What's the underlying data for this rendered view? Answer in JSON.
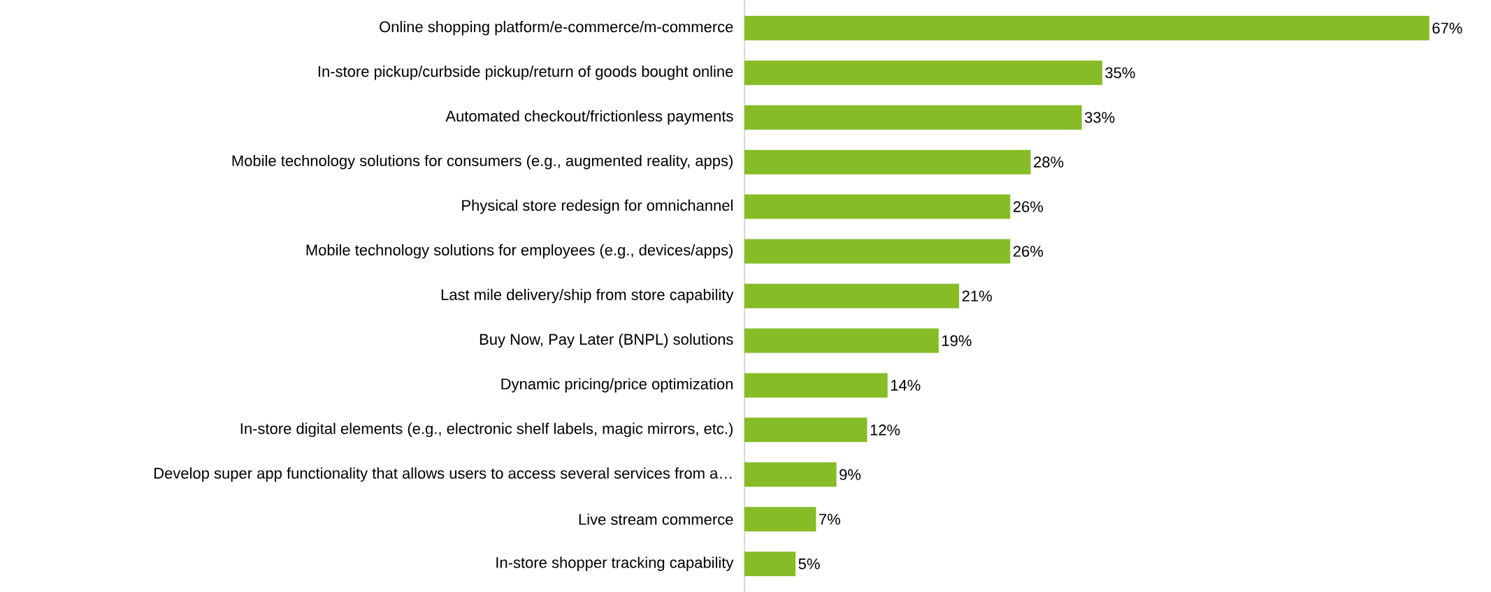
{
  "chart_data": {
    "type": "bar",
    "orientation": "horizontal",
    "color": "#86bc25",
    "categories": [
      "Online shopping platform/e-commerce/m-commerce",
      "In-store pickup/curbside pickup/return of goods bought online",
      "Automated checkout/frictionless payments",
      "Mobile technology solutions for consumers (e.g., augmented reality, apps)",
      "Physical store redesign for omnichannel",
      "Mobile technology solutions for employees (e.g., devices/apps)",
      "Last mile delivery/ship from store capability",
      "Buy Now, Pay Later (BNPL) solutions",
      "Dynamic pricing/price optimization",
      "In-store digital elements (e.g., electronic shelf labels, magic mirrors, etc.)",
      "Develop super app functionality that allows users to access several services from a…",
      "Live stream commerce",
      "In-store shopper tracking capability"
    ],
    "values": [
      67,
      35,
      33,
      28,
      26,
      26,
      21,
      19,
      14,
      12,
      9,
      7,
      5
    ],
    "value_labels": [
      "67%",
      "35%",
      "33%",
      "28%",
      "26%",
      "26%",
      "21%",
      "19%",
      "14%",
      "12%",
      "9%",
      "7%",
      "5%"
    ]
  }
}
